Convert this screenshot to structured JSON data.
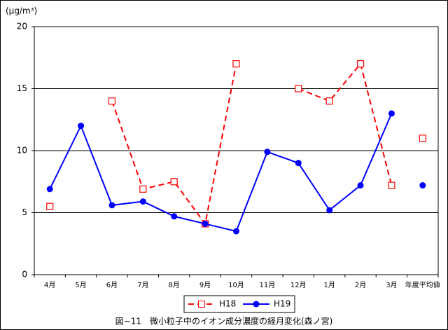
{
  "chart_data": {
    "type": "line",
    "title": "図−11　微小粒子中のイオン成分濃度の経月変化(森ノ宮)",
    "y_label": "(μg/m³)",
    "categories": [
      "4月",
      "5月",
      "6月",
      "7月",
      "8月",
      "9月",
      "10月",
      "11月",
      "12月",
      "1月",
      "2月",
      "3月"
    ],
    "average_label": "年度平均値",
    "series": [
      {
        "name": "H18",
        "color": "#ff0000",
        "dash": true,
        "marker": "square",
        "values": [
          5.5,
          null,
          14,
          6.9,
          7.5,
          4.1,
          17,
          null,
          15,
          14,
          17,
          7.2
        ],
        "average": 11
      },
      {
        "name": "H19",
        "color": "#0000ff",
        "dash": false,
        "marker": "circle",
        "values": [
          6.9,
          12,
          5.6,
          5.9,
          4.7,
          4.1,
          3.5,
          9.9,
          9.0,
          5.2,
          7.2,
          13
        ],
        "average": 7.2
      }
    ],
    "ylim": [
      0,
      20
    ],
    "yticks": [
      0,
      5,
      10,
      15,
      20
    ],
    "grid": true,
    "legend": "bottom"
  }
}
